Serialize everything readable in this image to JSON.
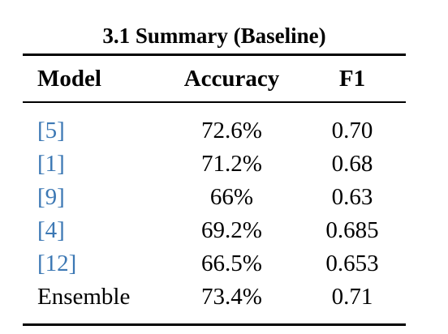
{
  "caption": "3.1 Summary (Baseline)",
  "headers": {
    "model": "Model",
    "accuracy": "Accuracy",
    "f1": "F1"
  },
  "rows": [
    {
      "ref_open": "[",
      "ref": "5",
      "ref_close": "]",
      "accuracy": "72.6%",
      "f1": "0.70"
    },
    {
      "ref_open": "[",
      "ref": "1",
      "ref_close": "]",
      "accuracy": "71.2%",
      "f1": "0.68"
    },
    {
      "ref_open": "[",
      "ref": "9",
      "ref_close": "]",
      "accuracy": "66%",
      "f1": "0.63"
    },
    {
      "ref_open": "[",
      "ref": "4",
      "ref_close": "]",
      "accuracy": "69.2%",
      "f1": "0.685"
    },
    {
      "ref_open": "[",
      "ref": "12",
      "ref_close": "]",
      "accuracy": "66.5%",
      "f1": "0.653"
    },
    {
      "label": "Ensemble",
      "accuracy": "73.4%",
      "f1": "0.71"
    }
  ],
  "colors": {
    "citation_link": "#3c78b4",
    "text": "#000000"
  }
}
